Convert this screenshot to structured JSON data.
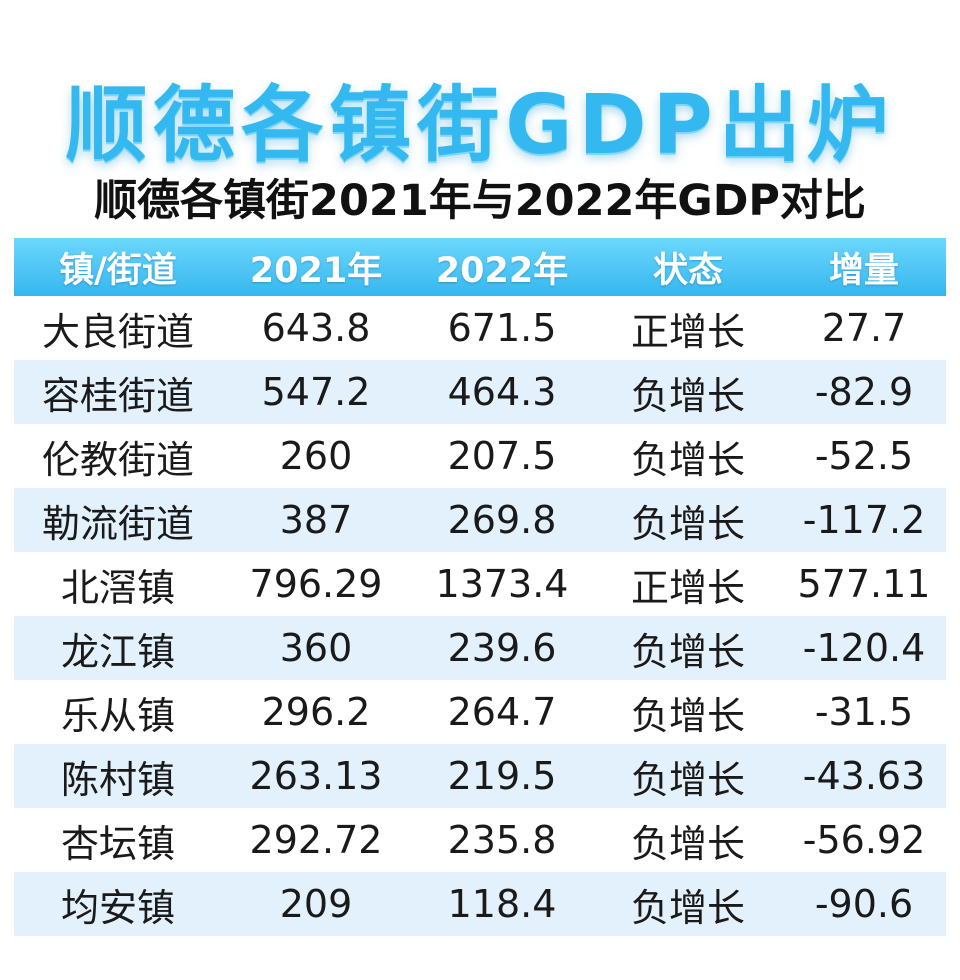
{
  "title": "顺德各镇街GDP出炉",
  "subtitle": "顺德各镇街2021年与2022年GDP对比",
  "colors": {
    "title": "#33b8ef",
    "header_bg": "#35b7ee",
    "stripe": "#e2f1fb",
    "positive": "#2f8a1e",
    "negative": "#a5231f"
  },
  "chart_data": {
    "type": "table",
    "columns": [
      "镇/街道",
      "2021年",
      "2022年",
      "状态",
      "增量"
    ],
    "rows": [
      {
        "name": "大良街道",
        "y2021": "643.8",
        "y2022": "671.5",
        "status": "正增长",
        "change": "27.7"
      },
      {
        "name": "容桂街道",
        "y2021": "547.2",
        "y2022": "464.3",
        "status": "负增长",
        "change": "-82.9"
      },
      {
        "name": "伦教街道",
        "y2021": "260",
        "y2022": "207.5",
        "status": "负增长",
        "change": "-52.5"
      },
      {
        "name": "勒流街道",
        "y2021": "387",
        "y2022": "269.8",
        "status": "负增长",
        "change": "-117.2"
      },
      {
        "name": "北滘镇",
        "y2021": "796.29",
        "y2022": "1373.4",
        "status": "正增长",
        "change": "577.11"
      },
      {
        "name": "龙江镇",
        "y2021": "360",
        "y2022": "239.6",
        "status": "负增长",
        "change": "-120.4"
      },
      {
        "name": "乐从镇",
        "y2021": "296.2",
        "y2022": "264.7",
        "status": "负增长",
        "change": "-31.5"
      },
      {
        "name": "陈村镇",
        "y2021": "263.13",
        "y2022": "219.5",
        "status": "负增长",
        "change": "-43.63"
      },
      {
        "name": "杏坛镇",
        "y2021": "292.72",
        "y2022": "235.8",
        "status": "负增长",
        "change": "-56.92"
      },
      {
        "name": "均安镇",
        "y2021": "209",
        "y2022": "118.4",
        "status": "负增长",
        "change": "-90.6"
      }
    ]
  }
}
